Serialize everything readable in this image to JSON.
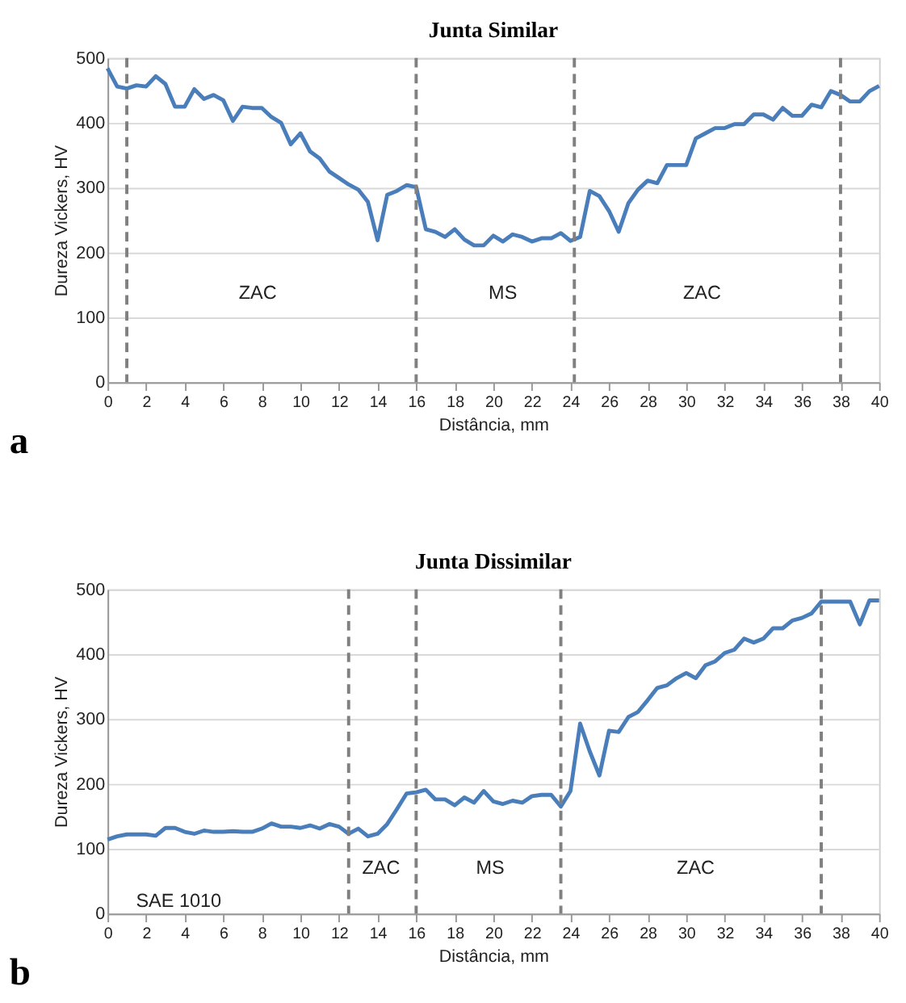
{
  "chart_data": [
    {
      "type": "line",
      "title": "Junta Similar",
      "xlabel": "Distância, mm",
      "ylabel": "Dureza Vickers, HV",
      "series": [
        {
          "color": "#4a7ebb",
          "x": [
            0,
            0.5,
            1,
            1.5,
            2,
            2.5,
            3,
            3.5,
            4,
            4.5,
            5,
            5.5,
            6,
            6.5,
            7,
            7.5,
            8,
            8.5,
            9,
            9.5,
            10,
            10.5,
            11,
            11.5,
            12,
            12.5,
            13,
            13.5,
            14,
            14.5,
            15,
            15.5,
            16,
            16.5,
            17,
            17.5,
            18,
            18.5,
            19,
            19.5,
            20,
            20.5,
            21,
            21.5,
            22,
            22.5,
            23,
            23.5,
            24,
            24.5,
            25,
            25.5,
            26,
            26.5,
            27,
            27.5,
            28,
            28.5,
            29,
            29.5,
            30,
            30.5,
            31,
            31.5,
            32,
            32.5,
            33,
            33.5,
            34,
            34.5,
            35,
            35.5,
            36,
            36.5,
            37,
            37.5,
            38,
            38.5,
            39,
            39.5,
            40
          ],
          "values": [
            484,
            456,
            453,
            458,
            456,
            472,
            460,
            425,
            425,
            452,
            437,
            443,
            435,
            403,
            425,
            423,
            423,
            409,
            400,
            367,
            384,
            356,
            345,
            325,
            315,
            305,
            297,
            278,
            219,
            289,
            295,
            304,
            301,
            236,
            232,
            224,
            236,
            220,
            211,
            211,
            226,
            217,
            228,
            224,
            217,
            222,
            222,
            230,
            218,
            224,
            295,
            287,
            264,
            232,
            276,
            297,
            311,
            307,
            335,
            335,
            335,
            376,
            384,
            392,
            392,
            398,
            398,
            413,
            413,
            405,
            423,
            411,
            411,
            428,
            424,
            449,
            443,
            433,
            433,
            449,
            457
          ]
        }
      ],
      "xlim": [
        0,
        40
      ],
      "xticks": [
        0,
        2,
        4,
        6,
        8,
        10,
        12,
        14,
        16,
        18,
        20,
        22,
        24,
        26,
        28,
        30,
        32,
        34,
        36,
        38,
        40
      ],
      "ylim": [
        0,
        500
      ],
      "yticks": [
        0,
        100,
        200,
        300,
        400,
        500
      ],
      "grid": "y",
      "marker": "none",
      "line_style": "solid",
      "ref_lines": [
        {
          "axis": "x",
          "value": 1,
          "color": "#808080",
          "line_style": "dashed"
        },
        {
          "axis": "x",
          "value": 16,
          "color": "#808080",
          "line_style": "dashed"
        },
        {
          "axis": "x",
          "value": 24.2,
          "color": "#808080",
          "line_style": "dashed"
        },
        {
          "axis": "x",
          "value": 38,
          "color": "#808080",
          "line_style": "dashed"
        }
      ],
      "annotations": [
        "ZAC",
        "MS",
        "ZAC",
        "a"
      ]
    },
    {
      "type": "line",
      "title": "Junta Dissimilar",
      "xlabel": "Distância, mm",
      "ylabel": "Dureza Vickers, HV",
      "series": [
        {
          "color": "#4a7ebb",
          "x": [
            0,
            0.5,
            1,
            1.5,
            2,
            2.5,
            3,
            3.5,
            4,
            4.5,
            5,
            5.5,
            6,
            6.5,
            7,
            7.5,
            8,
            8.5,
            9,
            9.5,
            10,
            10.5,
            11,
            11.5,
            12,
            12.5,
            13,
            13.5,
            14,
            14.5,
            15,
            15.5,
            16,
            16.5,
            17,
            17.5,
            18,
            18.5,
            19,
            19.5,
            20,
            20.5,
            21,
            21.5,
            22,
            22.5,
            23,
            23.5,
            24,
            24.5,
            25,
            25.5,
            26,
            26.5,
            27,
            27.5,
            28,
            28.5,
            29,
            29.5,
            30,
            30.5,
            31,
            31.5,
            32,
            32.5,
            33,
            33.5,
            34,
            34.5,
            35,
            35.5,
            36,
            36.5,
            37,
            37.5,
            38,
            38.5,
            39,
            39.5,
            40
          ],
          "values": [
            114,
            119,
            122,
            122,
            122,
            120,
            132,
            132,
            126,
            123,
            128,
            126,
            126,
            127,
            126,
            126,
            131,
            139,
            134,
            134,
            132,
            136,
            131,
            138,
            134,
            123,
            131,
            119,
            123,
            138,
            161,
            185,
            187,
            191,
            176,
            176,
            167,
            179,
            171,
            189,
            173,
            169,
            174,
            171,
            181,
            183,
            183,
            165,
            189,
            293,
            250,
            213,
            282,
            280,
            303,
            311,
            329,
            348,
            352,
            363,
            371,
            363,
            383,
            389,
            402,
            407,
            424,
            418,
            424,
            440,
            440,
            452,
            456,
            463,
            481,
            481,
            481,
            481,
            446,
            483,
            483
          ]
        }
      ],
      "xlim": [
        0,
        40
      ],
      "xticks": [
        0,
        2,
        4,
        6,
        8,
        10,
        12,
        14,
        16,
        18,
        20,
        22,
        24,
        26,
        28,
        30,
        32,
        34,
        36,
        38,
        40
      ],
      "ylim": [
        0,
        500
      ],
      "yticks": [
        0,
        100,
        200,
        300,
        400,
        500
      ],
      "grid": "y",
      "marker": "none",
      "line_style": "solid",
      "ref_lines": [
        {
          "axis": "x",
          "value": 12.5,
          "color": "#808080",
          "line_style": "dashed"
        },
        {
          "axis": "x",
          "value": 16,
          "color": "#808080",
          "line_style": "dashed"
        },
        {
          "axis": "x",
          "value": 23.5,
          "color": "#808080",
          "line_style": "dashed"
        },
        {
          "axis": "x",
          "value": 37,
          "color": "#808080",
          "line_style": "dashed"
        }
      ],
      "annotations": [
        "SAE 1010",
        "ZAC",
        "MS",
        "ZAC",
        "b"
      ]
    }
  ]
}
